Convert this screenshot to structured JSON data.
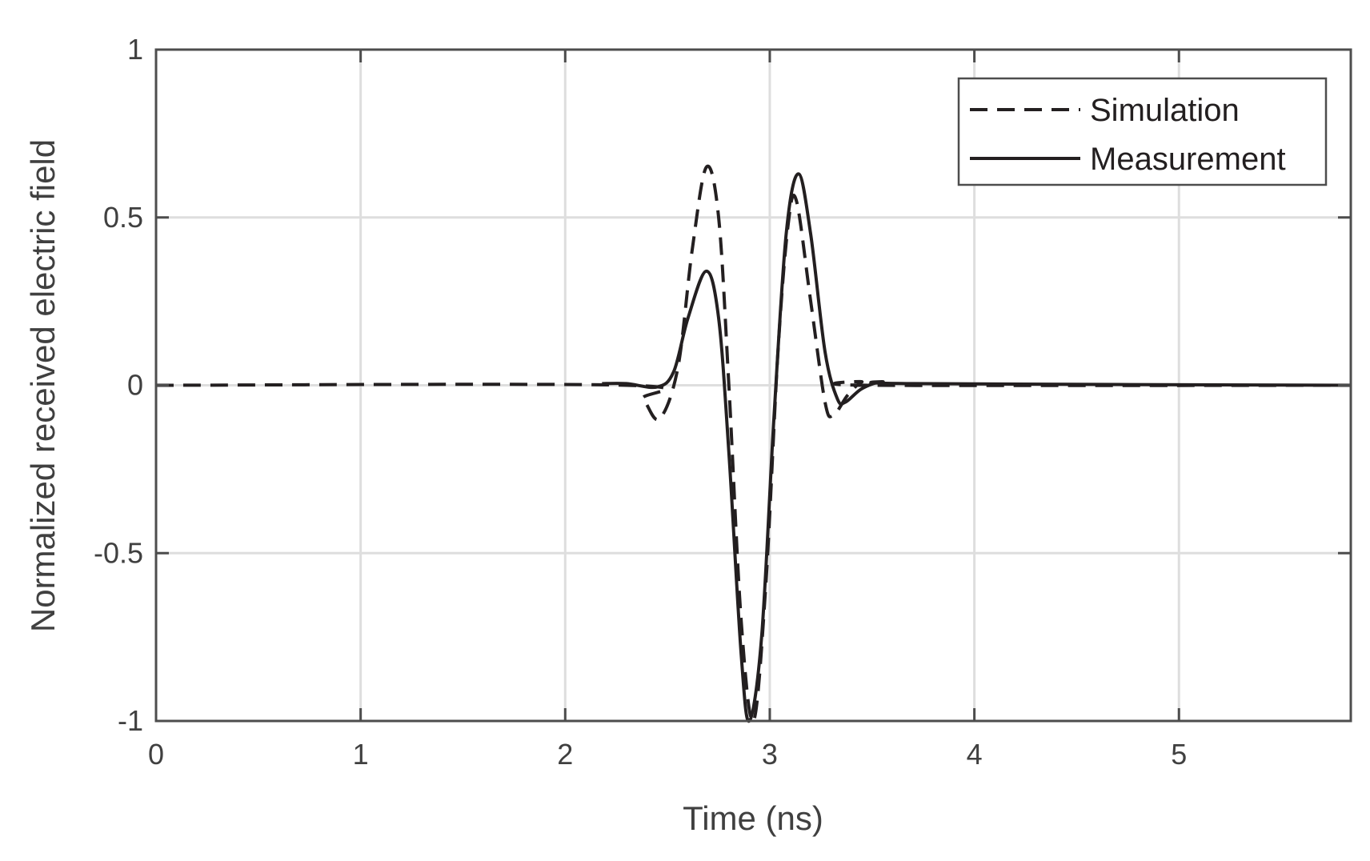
{
  "chart_data": {
    "type": "line",
    "title": "",
    "xlabel": "Time (ns)",
    "ylabel": "Normalized received electric field",
    "xlim": [
      0,
      5.84
    ],
    "ylim": [
      -1,
      1
    ],
    "xticks": [
      0,
      1,
      2,
      3,
      4,
      5
    ],
    "xtick_labels": [
      "0",
      "1",
      "2",
      "3",
      "4",
      "5"
    ],
    "yticks": [
      -1,
      -0.5,
      0,
      0.5,
      1
    ],
    "ytick_labels": [
      "-1",
      "-0.5",
      "0",
      "0.5",
      "1"
    ],
    "grid": true,
    "legend_position": "top-right",
    "colors": {
      "line": "#231f20",
      "axis": "#4d4d4d",
      "grid": "#dedede"
    },
    "series": [
      {
        "name": "Simulation",
        "style": "dashed",
        "x": [
          0,
          2.3,
          2.38,
          2.46,
          2.55,
          2.62,
          2.69,
          2.75,
          2.8,
          2.86,
          2.92,
          2.98,
          3.04,
          3.09,
          3.13,
          3.2,
          3.27,
          3.31,
          3.38,
          3.45,
          3.5,
          5.84
        ],
        "y": [
          0,
          0,
          -0.04,
          -0.1,
          0.05,
          0.4,
          0.65,
          0.5,
          0.0,
          -0.7,
          -1.0,
          -0.6,
          0.1,
          0.48,
          0.55,
          0.25,
          -0.05,
          -0.09,
          -0.03,
          0.01,
          0,
          0
        ]
      },
      {
        "name": "Measurement",
        "style": "solid",
        "x": [
          2.18,
          2.3,
          2.45,
          2.53,
          2.6,
          2.69,
          2.75,
          2.8,
          2.86,
          2.9,
          2.96,
          3.02,
          3.08,
          3.14,
          3.2,
          3.27,
          3.33,
          3.37,
          3.45,
          3.55,
          3.7,
          5.84
        ],
        "y": [
          0.005,
          0.005,
          -0.005,
          0.04,
          0.2,
          0.34,
          0.2,
          -0.2,
          -0.8,
          -1.0,
          -0.75,
          -0.1,
          0.45,
          0.63,
          0.45,
          0.1,
          -0.04,
          -0.05,
          -0.01,
          0.01,
          0.005,
          0
        ]
      }
    ]
  }
}
